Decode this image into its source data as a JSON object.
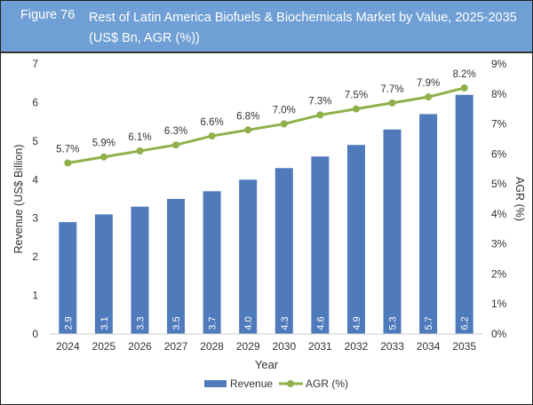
{
  "header": {
    "figure_label": "Figure 76",
    "title": "Rest of Latin America Biofuels & Biochemicals Market by Value, 2025-2035 (US$ Bn, AGR (%))"
  },
  "chart_data": {
    "type": "bar+line",
    "categories": [
      "2024",
      "2025",
      "2026",
      "2027",
      "2028",
      "2029",
      "2030",
      "2031",
      "2032",
      "2033",
      "2034",
      "2035"
    ],
    "series": [
      {
        "name": "Revenue",
        "type": "bar",
        "axis": "left",
        "values": [
          2.9,
          3.1,
          3.3,
          3.5,
          3.7,
          4.0,
          4.3,
          4.6,
          4.9,
          5.3,
          5.7,
          6.2
        ],
        "labels": [
          "2.9",
          "3.1",
          "3.3",
          "3.5",
          "3.7",
          "4.0",
          "4.3",
          "4.6",
          "4.9",
          "5.3",
          "5.7",
          "6.2"
        ],
        "color": "#4f7bbd"
      },
      {
        "name": "AGR (%)",
        "type": "line",
        "axis": "right",
        "values": [
          5.7,
          5.9,
          6.1,
          6.3,
          6.6,
          6.8,
          7.0,
          7.3,
          7.5,
          7.7,
          7.9,
          8.2
        ],
        "labels": [
          "5.7%",
          "5.9%",
          "6.1%",
          "6.3%",
          "6.6%",
          "6.8%",
          "7.0%",
          "7.3%",
          "7.5%",
          "7.7%",
          "7.9%",
          "8.2%"
        ],
        "color": "#8fb04a"
      }
    ],
    "xlabel": "Year",
    "ylabel": "Revenue (US$ Billion)",
    "y2label": "AGR (%)",
    "ylim": [
      0,
      7
    ],
    "y2lim": [
      0,
      9
    ],
    "yticks": [
      "0",
      "1",
      "2",
      "3",
      "4",
      "5",
      "6",
      "7"
    ],
    "y2ticks": [
      "0%",
      "1%",
      "2%",
      "3%",
      "4%",
      "5%",
      "6%",
      "7%",
      "8%",
      "9%"
    ],
    "grid": false,
    "legend": "bottom"
  }
}
